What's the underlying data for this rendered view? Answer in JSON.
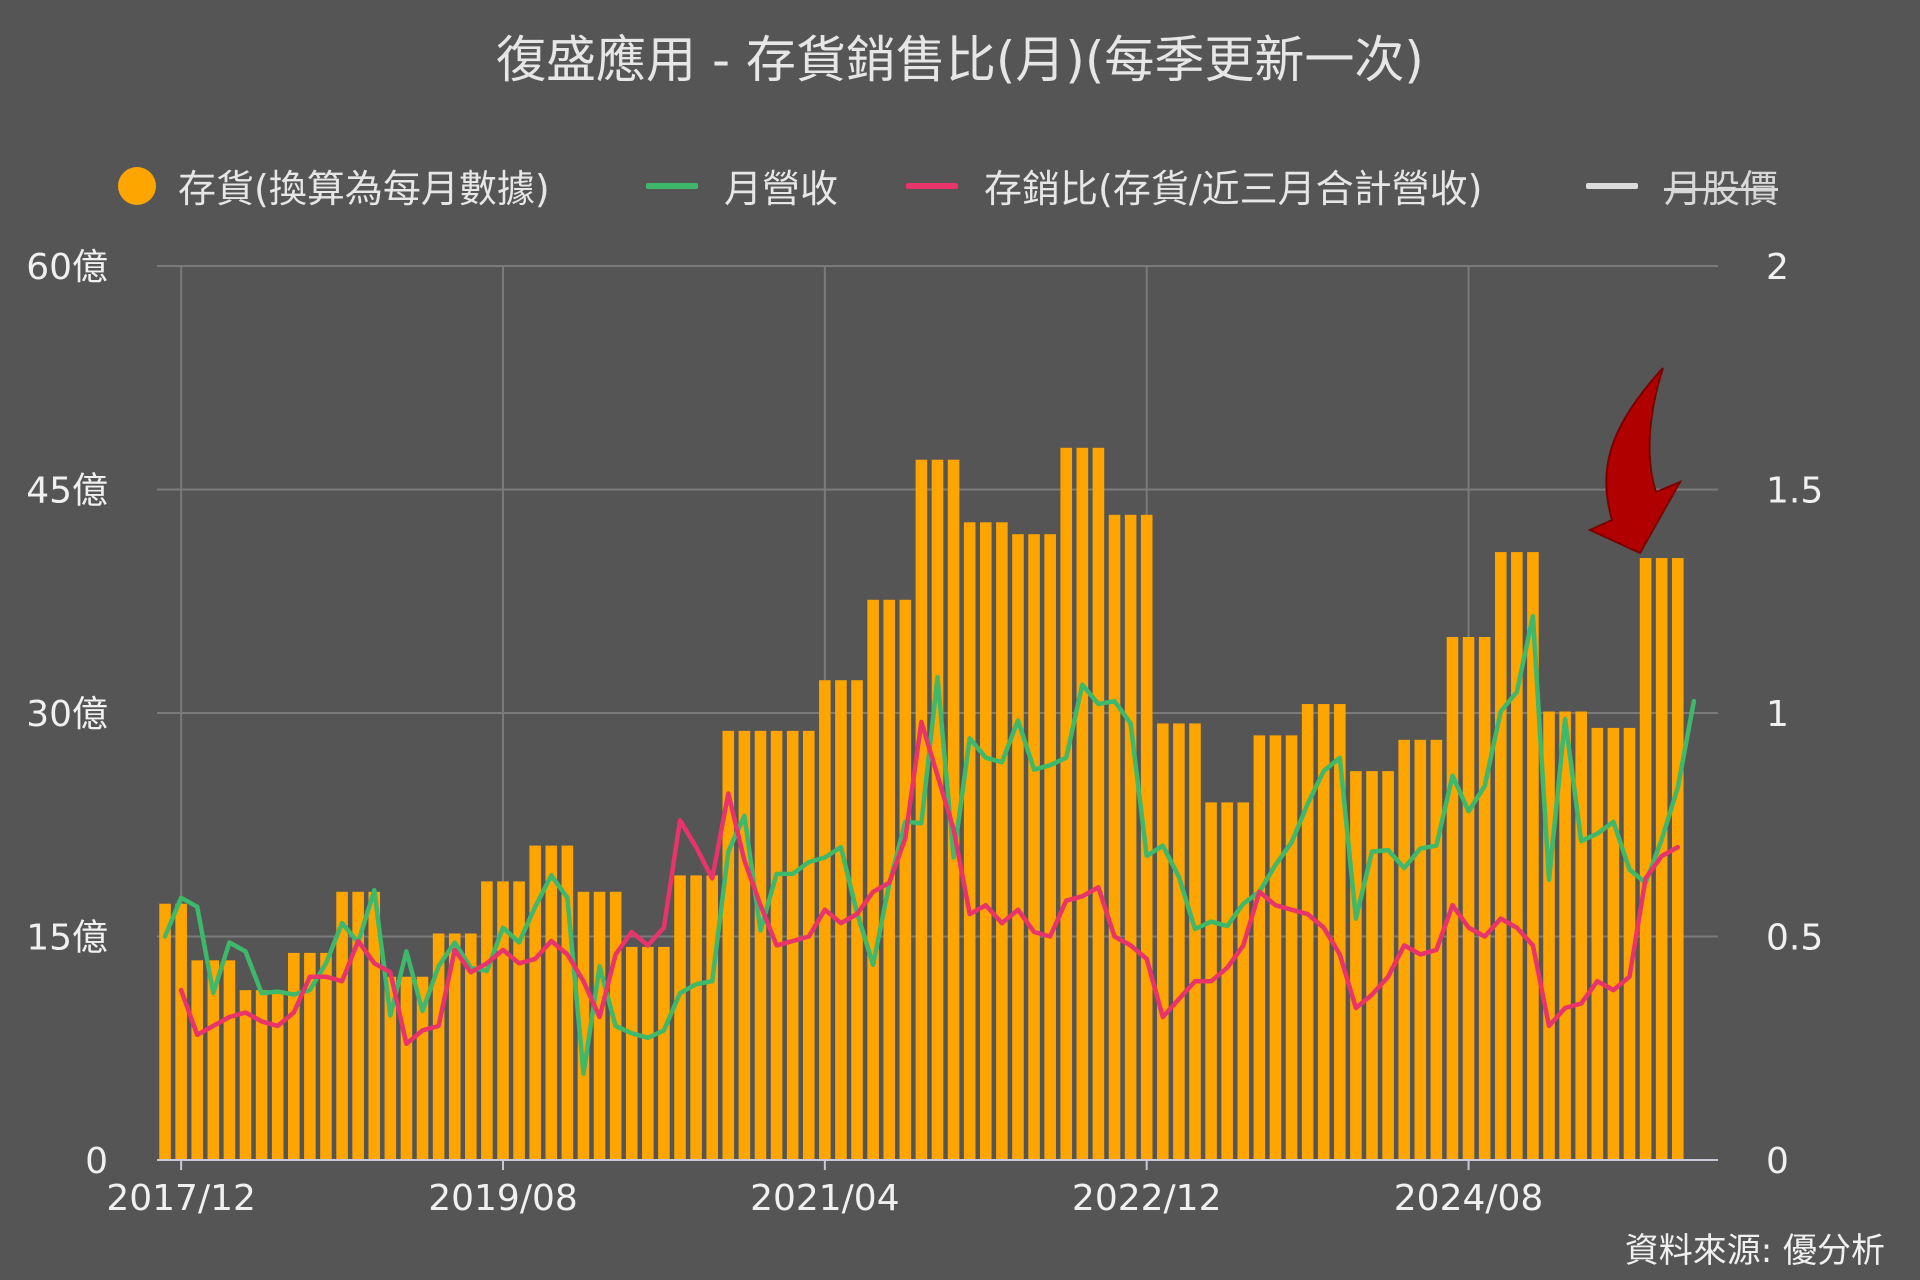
{
  "title": "復盛應用 - 存貨銷售比(月)(每季更新一次)",
  "source": "資料來源: 優分析",
  "legend": [
    {
      "label": "存貨(換算為每月數據)",
      "color": "#FFA500",
      "shape": "dot",
      "strike": false
    },
    {
      "label": "月營收",
      "color": "#3EB86A",
      "shape": "line",
      "strike": false
    },
    {
      "label": "存銷比(存貨/近三月合計營收)",
      "color": "#E8336B",
      "shape": "line",
      "strike": false
    },
    {
      "label": "月股價",
      "color": "#dcdcdc",
      "shape": "line",
      "strike": true
    }
  ],
  "colors": {
    "bars": "#FFA500",
    "revenue": "#3EB86A",
    "ratio": "#E8336B",
    "grid": "#7a7a7a",
    "axis": "#c8c8d8",
    "arrow": "#B00000"
  },
  "icons": {
    "annotation": "red-arrow-icon"
  },
  "chart_data": {
    "type": "bar+line",
    "x_start": "2017/11",
    "x_tick_labels": [
      "2017/12",
      "2019/08",
      "2021/04",
      "2022/12",
      "2024/08"
    ],
    "y_left": {
      "ticks": [
        "0",
        "15億",
        "30億",
        "45億",
        "60億"
      ],
      "range": [
        0,
        60
      ],
      "unit": "億"
    },
    "y_right": {
      "ticks": [
        "0",
        "0.5",
        "1",
        "1.5",
        "2"
      ],
      "range": [
        0,
        2
      ]
    },
    "grid": true,
    "legend_position": "top",
    "series": [
      {
        "name": "存貨(換算為每月數據)",
        "type": "bar",
        "axis": "left",
        "values": [
          17.2,
          17.2,
          13.4,
          13.4,
          13.4,
          11.4,
          11.4,
          11.4,
          13.9,
          13.9,
          13.9,
          18,
          18,
          18,
          12.3,
          12.3,
          12.3,
          15.2,
          15.2,
          15.2,
          18.7,
          18.7,
          18.7,
          21.1,
          21.1,
          21.1,
          18,
          18,
          18,
          14.3,
          14.3,
          14.3,
          19.1,
          19.1,
          19.1,
          28.8,
          28.8,
          28.8,
          28.8,
          28.8,
          28.8,
          32.2,
          32.2,
          32.2,
          37.6,
          37.6,
          37.6,
          47,
          47,
          47,
          42.8,
          42.8,
          42.8,
          42,
          42,
          42,
          47.8,
          47.8,
          47.8,
          43.3,
          43.3,
          43.3,
          29.3,
          29.3,
          29.3,
          24,
          24,
          24,
          28.5,
          28.5,
          28.5,
          30.6,
          30.6,
          30.6,
          26.1,
          26.1,
          26.1,
          28.2,
          28.2,
          28.2,
          35.1,
          35.1,
          35.1,
          40.8,
          40.8,
          40.8,
          30.1,
          30.1,
          30.1,
          29,
          29,
          29,
          40.4,
          40.4,
          40.4
        ]
      },
      {
        "name": "月營收",
        "type": "line",
        "axis": "left",
        "values": [
          15,
          17.6,
          17,
          11.2,
          14.6,
          14,
          11.2,
          11.3,
          11.1,
          11.4,
          13.2,
          15.9,
          14.6,
          18.1,
          9.7,
          14,
          10,
          13,
          14.6,
          12.9,
          12.7,
          15.6,
          14.6,
          17,
          19.1,
          17.6,
          5.8,
          13,
          9,
          8.5,
          8.2,
          8.7,
          11.2,
          11.8,
          12,
          20.7,
          23.1,
          15.4,
          19.2,
          19.2,
          20,
          20.3,
          21,
          16.6,
          13.1,
          18.5,
          22.7,
          22.6,
          32.4,
          20.3,
          28.3,
          27,
          26.7,
          29.5,
          26.2,
          26.5,
          27,
          31.9,
          30.6,
          30.8,
          29.3,
          20.4,
          21.1,
          19,
          15.5,
          16,
          15.7,
          17.2,
          18,
          19.8,
          21.3,
          23.9,
          26.1,
          27,
          16.2,
          20.7,
          20.8,
          19.6,
          20.9,
          21.1,
          25.8,
          23.4,
          25.1,
          30.1,
          31.4,
          36.5,
          18.8,
          29.6,
          21.4,
          21.9,
          22.7,
          19.5,
          18.6,
          21.5,
          25,
          30.8
        ]
      },
      {
        "name": "存銷比(存貨/近三月合計營收)",
        "type": "line",
        "axis": "right",
        "values": [
          0.38,
          0.28,
          0.3,
          0.32,
          0.33,
          0.31,
          0.3,
          0.33,
          0.41,
          0.41,
          0.4,
          0.49,
          0.44,
          0.42,
          0.26,
          0.29,
          0.3,
          0.47,
          0.42,
          0.44,
          0.47,
          0.44,
          0.45,
          0.49,
          0.46,
          0.4,
          0.32,
          0.46,
          0.51,
          0.48,
          0.52,
          0.76,
          0.7,
          0.63,
          0.82,
          0.67,
          0.57,
          0.48,
          0.49,
          0.5,
          0.56,
          0.53,
          0.55,
          0.6,
          0.62,
          0.72,
          0.98,
          0.86,
          0.74,
          0.55,
          0.57,
          0.53,
          0.56,
          0.51,
          0.5,
          0.58,
          0.59,
          0.61,
          0.5,
          0.48,
          0.45,
          0.32,
          0.36,
          0.4,
          0.4,
          0.43,
          0.48,
          0.6,
          0.57,
          0.56,
          0.55,
          0.52,
          0.46,
          0.34,
          0.37,
          0.41,
          0.48,
          0.46,
          0.47,
          0.57,
          0.52,
          0.5,
          0.54,
          0.52,
          0.48,
          0.3,
          0.34,
          0.35,
          0.4,
          0.38,
          0.41,
          0.63,
          0.68,
          0.7
        ]
      }
    ]
  }
}
